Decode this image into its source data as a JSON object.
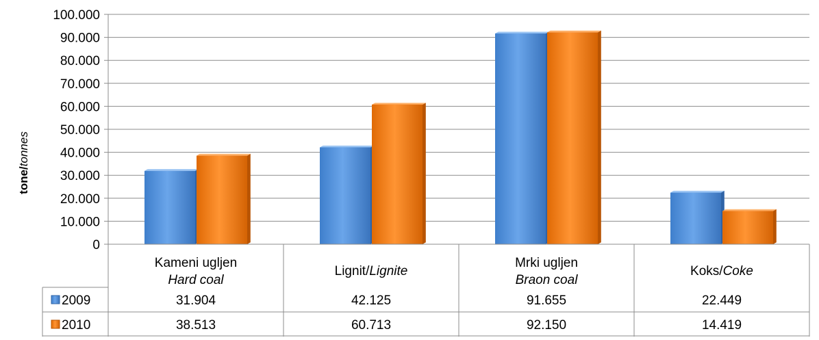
{
  "chart_data": {
    "type": "bar",
    "ylabel": "tone/",
    "ylabel_italic": "tonnes",
    "ylim": [
      0,
      100000
    ],
    "yticks": [
      {
        "value": 0,
        "label": "0"
      },
      {
        "value": 10000,
        "label": "10.000"
      },
      {
        "value": 20000,
        "label": "20.000"
      },
      {
        "value": 30000,
        "label": "30.000"
      },
      {
        "value": 40000,
        "label": "40.000"
      },
      {
        "value": 50000,
        "label": "50.000"
      },
      {
        "value": 60000,
        "label": "60.000"
      },
      {
        "value": 70000,
        "label": "70.000"
      },
      {
        "value": 80000,
        "label": "80.000"
      },
      {
        "value": 90000,
        "label": "90.000"
      },
      {
        "value": 100000,
        "label": "100.000"
      }
    ],
    "grid": true,
    "categories": [
      {
        "line1": "Kameni ugljen",
        "line1_italic": "",
        "line2": "Hard coal",
        "inline": false
      },
      {
        "line1": "Lignit/",
        "line1_italic": "Lignite",
        "line2": "",
        "inline": true
      },
      {
        "line1": "Mrki ugljen",
        "line1_italic": "",
        "line2": "Braon coal",
        "inline": false
      },
      {
        "line1": "Koks/",
        "line1_italic": "Coke",
        "line2": "",
        "inline": true
      }
    ],
    "series": [
      {
        "name": "2009",
        "color": "#4F8FDB",
        "values": [
          31904,
          42125,
          91655,
          22449
        ],
        "labels": [
          "31.904",
          "42.125",
          "91.655",
          "22.449"
        ]
      },
      {
        "name": "2010",
        "color": "#F07A10",
        "values": [
          38513,
          60713,
          92150,
          14419
        ],
        "labels": [
          "38.513",
          "60.713",
          "92.150",
          "14.419"
        ]
      }
    ],
    "legend": "data-table"
  }
}
